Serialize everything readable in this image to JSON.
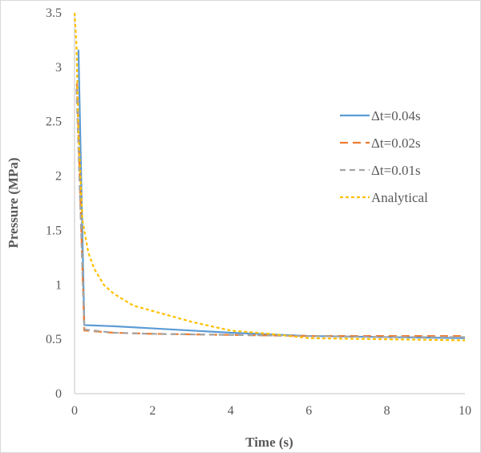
{
  "chart_data": {
    "type": "line",
    "title": "",
    "xlabel": "Time (s)",
    "ylabel": "Pressure (MPa)",
    "xlim": [
      0,
      10
    ],
    "ylim": [
      0,
      3.5
    ],
    "xticks": [
      0,
      2,
      4,
      6,
      8,
      10
    ],
    "yticks": [
      0,
      0.5,
      1,
      1.5,
      2,
      2.5,
      3,
      3.5
    ],
    "ytick_labels": [
      "0",
      "0.5",
      "1",
      "1.5",
      "2",
      "2.5",
      "3",
      "3.5"
    ],
    "grid": false,
    "legend_position": "right",
    "series": [
      {
        "name": "Δt=0.04s",
        "color": "#5b9bd5",
        "dash": "solid",
        "x": [
          0.1,
          0.25,
          1,
          2,
          4,
          6,
          8,
          10
        ],
        "y": [
          3.16,
          0.63,
          0.62,
          0.6,
          0.56,
          0.53,
          0.52,
          0.51
        ]
      },
      {
        "name": "Δt=0.02s",
        "color": "#ed7d31",
        "dash": "long-dash",
        "x": [
          0.06,
          0.25,
          1,
          2,
          4,
          6,
          8,
          10
        ],
        "y": [
          2.85,
          0.58,
          0.56,
          0.55,
          0.54,
          0.53,
          0.53,
          0.53
        ]
      },
      {
        "name": "Δt=0.01s",
        "color": "#a5a5a5",
        "dash": "dash",
        "x": [
          0.05,
          0.25,
          1,
          2,
          4,
          6,
          8,
          10
        ],
        "y": [
          2.8,
          0.59,
          0.56,
          0.55,
          0.54,
          0.53,
          0.52,
          0.52
        ]
      },
      {
        "name": "Analytical",
        "color": "#ffc000",
        "dash": "dot",
        "x": [
          0,
          0.05,
          0.1,
          0.2,
          0.35,
          0.5,
          0.75,
          1,
          1.5,
          2,
          3,
          4,
          5,
          6,
          8,
          10
        ],
        "y": [
          3.5,
          3.2,
          2.4,
          1.6,
          1.3,
          1.15,
          1.0,
          0.92,
          0.81,
          0.76,
          0.66,
          0.58,
          0.55,
          0.51,
          0.5,
          0.49
        ]
      }
    ]
  }
}
